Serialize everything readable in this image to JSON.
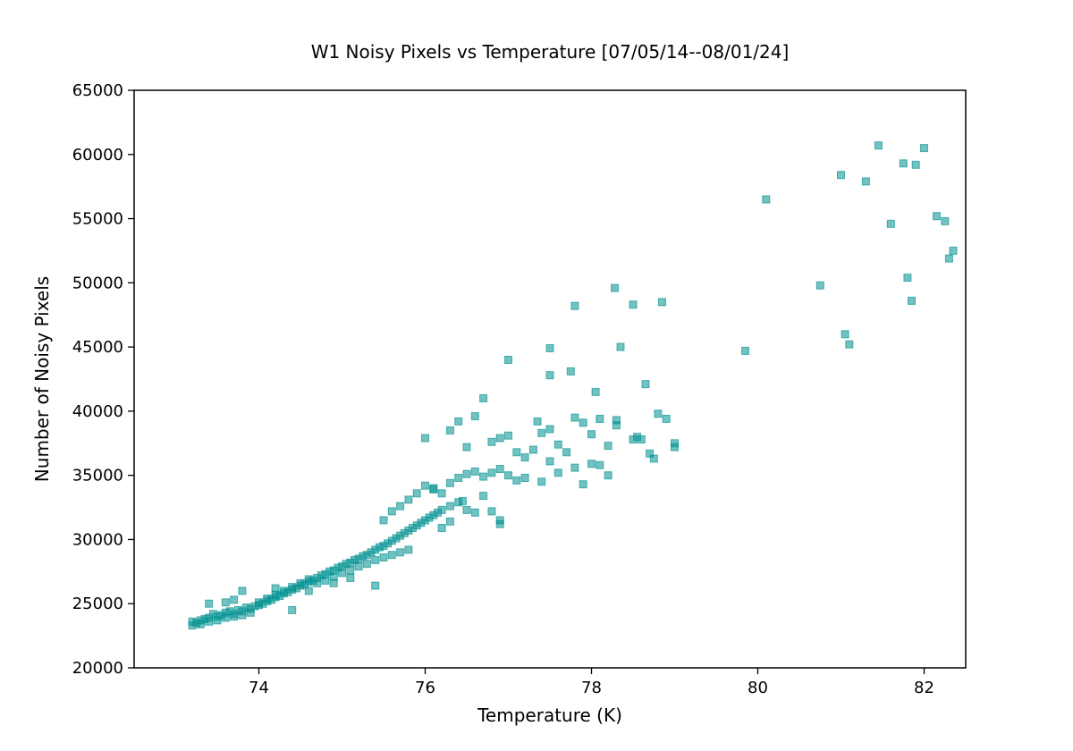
{
  "chart_data": {
    "type": "scatter",
    "title": "W1 Noisy Pixels vs Temperature [07/05/14--08/01/24]",
    "xlabel": "Temperature (K)",
    "ylabel": "Number of Noisy Pixels",
    "xlim": [
      72.5,
      82.5
    ],
    "ylim": [
      20000,
      65000
    ],
    "xticks": [
      74,
      76,
      78,
      80,
      82
    ],
    "yticks": [
      20000,
      25000,
      30000,
      35000,
      40000,
      45000,
      50000,
      55000,
      60000,
      65000
    ],
    "grid": false,
    "legend": "none",
    "marker": "square",
    "color": "#009090",
    "opacity": 0.55,
    "series": [
      {
        "points": [
          [
            73.2,
            23300
          ],
          [
            73.2,
            23600
          ],
          [
            73.25,
            23500
          ],
          [
            73.3,
            23700
          ],
          [
            73.3,
            23400
          ],
          [
            73.35,
            23800
          ],
          [
            73.4,
            23900
          ],
          [
            73.4,
            23600
          ],
          [
            73.45,
            24200
          ],
          [
            73.5,
            24000
          ],
          [
            73.5,
            23700
          ],
          [
            73.55,
            24100
          ],
          [
            73.6,
            24300
          ],
          [
            73.6,
            23900
          ],
          [
            73.65,
            24400
          ],
          [
            73.7,
            24200
          ],
          [
            73.7,
            24000
          ],
          [
            73.75,
            24500
          ],
          [
            73.8,
            24400
          ],
          [
            73.8,
            24100
          ],
          [
            73.85,
            24700
          ],
          [
            73.9,
            24600
          ],
          [
            73.9,
            24300
          ],
          [
            73.95,
            24800
          ],
          [
            74.0,
            24900
          ],
          [
            74.0,
            25100
          ],
          [
            74.05,
            25000
          ],
          [
            74.1,
            25200
          ],
          [
            74.1,
            25400
          ],
          [
            74.15,
            25300
          ],
          [
            74.2,
            25500
          ],
          [
            74.2,
            25700
          ],
          [
            74.25,
            25600
          ],
          [
            74.3,
            25800
          ],
          [
            74.3,
            26000
          ],
          [
            74.35,
            25900
          ],
          [
            74.4,
            26100
          ],
          [
            74.4,
            26300
          ],
          [
            74.45,
            26200
          ],
          [
            74.5,
            26400
          ],
          [
            74.5,
            26600
          ],
          [
            74.55,
            26500
          ],
          [
            74.6,
            26700
          ],
          [
            74.6,
            26900
          ],
          [
            74.65,
            26800
          ],
          [
            74.7,
            27000
          ],
          [
            74.7,
            26600
          ],
          [
            74.75,
            27200
          ],
          [
            74.8,
            27300
          ],
          [
            74.8,
            26800
          ],
          [
            74.85,
            27500
          ],
          [
            74.9,
            27600
          ],
          [
            74.9,
            27100
          ],
          [
            74.95,
            27800
          ],
          [
            75.0,
            27900
          ],
          [
            75.0,
            27400
          ],
          [
            75.05,
            28100
          ],
          [
            75.1,
            28200
          ],
          [
            75.1,
            27600
          ],
          [
            75.15,
            28400
          ],
          [
            75.2,
            28500
          ],
          [
            75.2,
            27900
          ],
          [
            75.25,
            28700
          ],
          [
            75.3,
            28800
          ],
          [
            75.3,
            28100
          ],
          [
            75.35,
            29000
          ],
          [
            75.4,
            29200
          ],
          [
            75.4,
            28400
          ],
          [
            75.45,
            29400
          ],
          [
            75.5,
            29500
          ],
          [
            75.5,
            28600
          ],
          [
            75.55,
            29700
          ],
          [
            75.6,
            29900
          ],
          [
            75.6,
            28800
          ],
          [
            75.65,
            30100
          ],
          [
            75.7,
            30300
          ],
          [
            75.7,
            29000
          ],
          [
            75.75,
            30500
          ],
          [
            75.8,
            30700
          ],
          [
            75.8,
            29200
          ],
          [
            75.85,
            30900
          ],
          [
            75.9,
            31100
          ],
          [
            75.95,
            31300
          ],
          [
            76.0,
            31500
          ],
          [
            76.05,
            31700
          ],
          [
            76.1,
            31900
          ],
          [
            76.15,
            32100
          ],
          [
            76.2,
            32300
          ],
          [
            76.3,
            32600
          ],
          [
            76.4,
            32900
          ],
          [
            75.5,
            31500
          ],
          [
            75.6,
            32200
          ],
          [
            75.7,
            32600
          ],
          [
            75.8,
            33100
          ],
          [
            75.9,
            33600
          ],
          [
            76.0,
            34200
          ],
          [
            76.1,
            34000
          ],
          [
            76.2,
            33600
          ],
          [
            76.3,
            34400
          ],
          [
            76.4,
            34800
          ],
          [
            76.5,
            35100
          ],
          [
            76.6,
            35300
          ],
          [
            76.7,
            34900
          ],
          [
            76.8,
            35200
          ],
          [
            76.9,
            35500
          ],
          [
            76.0,
            37900
          ],
          [
            76.3,
            38500
          ],
          [
            76.4,
            39200
          ],
          [
            76.5,
            37200
          ],
          [
            76.6,
            39600
          ],
          [
            76.7,
            41000
          ],
          [
            76.8,
            37600
          ],
          [
            76.9,
            37900
          ],
          [
            77.0,
            38100
          ],
          [
            77.0,
            44000
          ],
          [
            77.1,
            36800
          ],
          [
            77.2,
            36400
          ],
          [
            77.3,
            37000
          ],
          [
            77.35,
            39200
          ],
          [
            77.4,
            38300
          ],
          [
            77.5,
            38600
          ],
          [
            77.5,
            42800
          ],
          [
            77.5,
            44900
          ],
          [
            77.6,
            37400
          ],
          [
            77.7,
            36800
          ],
          [
            77.75,
            43100
          ],
          [
            77.8,
            48200
          ],
          [
            77.8,
            39500
          ],
          [
            77.9,
            39100
          ],
          [
            78.0,
            38200
          ],
          [
            78.05,
            41500
          ],
          [
            78.1,
            39400
          ],
          [
            78.2,
            37300
          ],
          [
            78.3,
            39300
          ],
          [
            78.3,
            38900
          ],
          [
            78.35,
            45000
          ],
          [
            78.5,
            37800
          ],
          [
            78.5,
            48300
          ],
          [
            78.55,
            38000
          ],
          [
            78.6,
            37800
          ],
          [
            78.65,
            42100
          ],
          [
            78.7,
            36700
          ],
          [
            78.75,
            36300
          ],
          [
            78.8,
            39800
          ],
          [
            78.85,
            48500
          ],
          [
            78.9,
            39400
          ],
          [
            79.0,
            37500
          ],
          [
            79.0,
            37200
          ],
          [
            78.28,
            49600
          ],
          [
            77.0,
            35000
          ],
          [
            77.2,
            34800
          ],
          [
            77.4,
            34500
          ],
          [
            77.6,
            35200
          ],
          [
            77.8,
            35600
          ],
          [
            78.0,
            35900
          ],
          [
            78.2,
            35000
          ],
          [
            77.1,
            34600
          ],
          [
            77.5,
            36100
          ],
          [
            77.9,
            34300
          ],
          [
            78.1,
            35800
          ],
          [
            76.6,
            32100
          ],
          [
            76.8,
            32200
          ],
          [
            76.9,
            31200
          ],
          [
            76.9,
            31500
          ],
          [
            76.3,
            31400
          ],
          [
            76.5,
            32300
          ],
          [
            76.2,
            30900
          ],
          [
            76.7,
            33400
          ],
          [
            76.1,
            33900
          ],
          [
            76.45,
            33000
          ],
          [
            73.6,
            25100
          ],
          [
            73.8,
            26000
          ],
          [
            74.2,
            26200
          ],
          [
            74.4,
            24500
          ],
          [
            74.9,
            26600
          ],
          [
            75.4,
            26400
          ],
          [
            73.4,
            25000
          ],
          [
            73.7,
            25300
          ],
          [
            74.6,
            26000
          ],
          [
            75.1,
            27000
          ],
          [
            79.85,
            44700
          ],
          [
            80.1,
            56500
          ],
          [
            80.75,
            49800
          ],
          [
            81.0,
            58400
          ],
          [
            81.05,
            46000
          ],
          [
            81.1,
            45200
          ],
          [
            81.3,
            57900
          ],
          [
            81.45,
            60700
          ],
          [
            81.6,
            54600
          ],
          [
            81.75,
            59300
          ],
          [
            81.8,
            50400
          ],
          [
            81.85,
            48600
          ],
          [
            81.9,
            59200
          ],
          [
            82.0,
            60500
          ],
          [
            82.15,
            55200
          ],
          [
            82.25,
            54800
          ],
          [
            82.3,
            51900
          ],
          [
            82.35,
            52500
          ]
        ]
      }
    ]
  }
}
